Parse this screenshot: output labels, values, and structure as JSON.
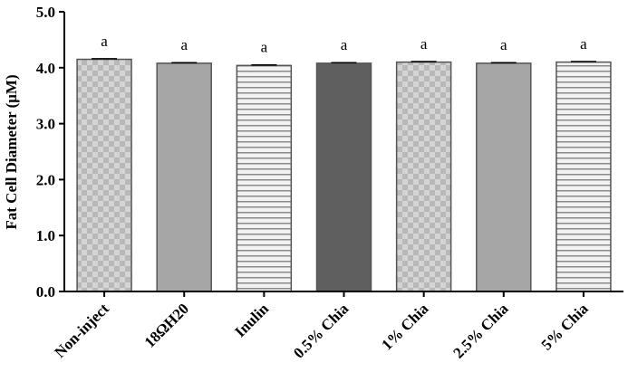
{
  "chart_data": {
    "type": "bar",
    "y_label": "Fat Cell Diameter (μM)",
    "categories": [
      "Non-inject",
      "18ΩH20",
      "Inulin",
      "0.5% Chia",
      "1% Chia",
      "2.5% Chia",
      "5% Chia"
    ],
    "values": [
      4.15,
      4.08,
      4.04,
      4.08,
      4.1,
      4.08,
      4.1
    ],
    "errors": [
      0.01,
      0.01,
      0.01,
      0.01,
      0.01,
      0.01,
      0.01
    ],
    "annotations": [
      "a",
      "a",
      "a",
      "a",
      "a",
      "a",
      "a"
    ],
    "fills": [
      "checker",
      "gray",
      "stripes",
      "dark",
      "checker",
      "gray",
      "stripes"
    ],
    "ylim": [
      0,
      5
    ],
    "yticks": [
      {
        "value": 0,
        "label": "0.0"
      },
      {
        "value": 1,
        "label": "1.0"
      },
      {
        "value": 2,
        "label": "2.0"
      },
      {
        "value": 3,
        "label": "3.0"
      },
      {
        "value": 4,
        "label": "4.0"
      },
      {
        "value": 5,
        "label": "5.0"
      }
    ]
  }
}
